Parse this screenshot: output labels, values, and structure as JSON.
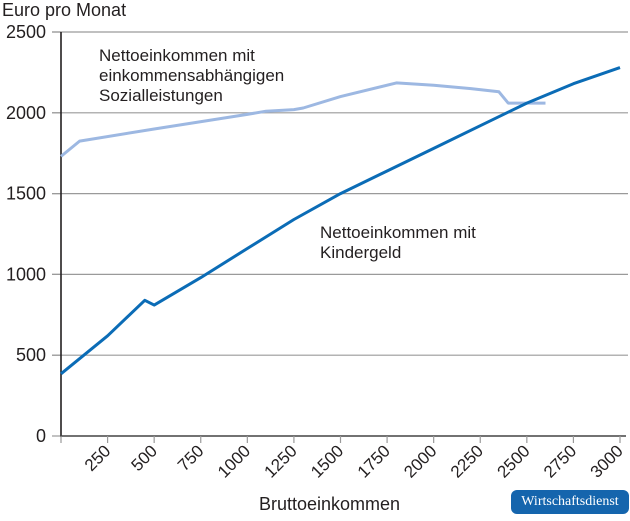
{
  "chart_data": {
    "type": "line",
    "title": "",
    "ylabel": "Euro pro Monat",
    "xlabel": "Bruttoeinkommen",
    "xlim": [
      0,
      3050
    ],
    "ylim": [
      0,
      2500
    ],
    "xticks": [
      250,
      500,
      750,
      1000,
      1250,
      1500,
      1750,
      2000,
      2250,
      2500,
      2750,
      3000
    ],
    "yticks": [
      0,
      500,
      1000,
      1500,
      2000,
      2500
    ],
    "grid": "horizontal",
    "legend": "inline annotations",
    "series": [
      {
        "name": "Nettoeinkommen mit einkommensabhängigen Sozialleistungen",
        "color": "#9db8e2",
        "x": [
          0,
          100,
          500,
          1000,
          1100,
          1250,
          1300,
          1500,
          1800,
          2000,
          2200,
          2350,
          2400,
          2500,
          2600
        ],
        "y": [
          1730,
          1825,
          1900,
          1990,
          2010,
          2020,
          2030,
          2100,
          2185,
          2170,
          2150,
          2130,
          2060,
          2060,
          2060
        ]
      },
      {
        "name": "Nettoeinkommen mit Kindergeld",
        "color": "#0b6cb6",
        "x": [
          0,
          250,
          450,
          500,
          750,
          1000,
          1250,
          1500,
          1750,
          2000,
          2250,
          2500,
          2750,
          3000
        ],
        "y": [
          385,
          620,
          840,
          810,
          980,
          1160,
          1340,
          1500,
          1640,
          1780,
          1920,
          2060,
          2180,
          2280
        ]
      }
    ],
    "annotations": [
      {
        "text_lines": [
          "Nettoeinkommen mit",
          "einkommensabhängigen",
          "Sozialleistungen"
        ]
      },
      {
        "text_lines": [
          "Nettoeinkommen mit",
          "Kindergeld"
        ]
      }
    ]
  },
  "labels": {
    "y_title": "Euro pro Monat",
    "x_title": "Bruttoeinkommen",
    "annot1_l1": "Nettoeinkommen mit",
    "annot1_l2": "einkommensabhängigen",
    "annot1_l3": "Sozialleistungen",
    "annot2_l1": "Nettoeinkommen mit",
    "annot2_l2": "Kindergeld",
    "source_badge": "Wirtschaftsdienst"
  }
}
